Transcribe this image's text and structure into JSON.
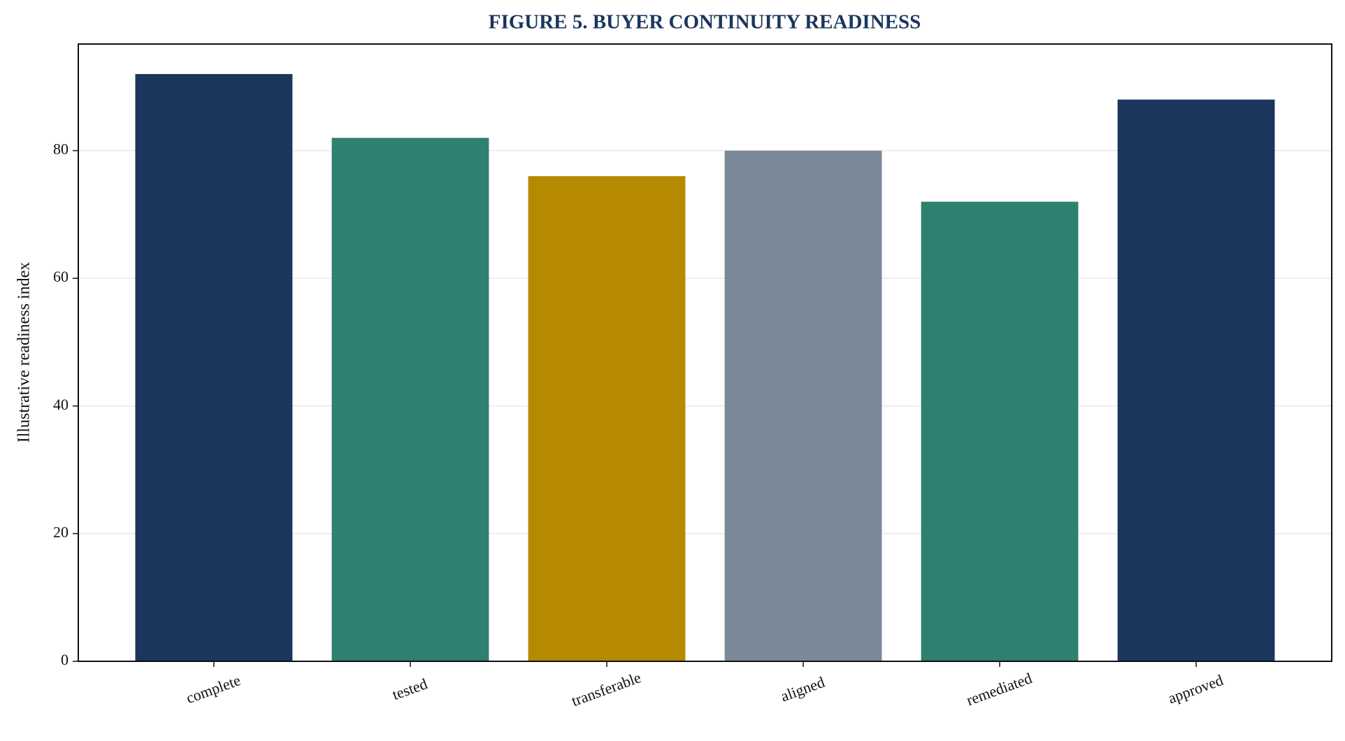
{
  "chart_data": {
    "type": "bar",
    "title": "FIGURE 5. BUYER CONTINUITY READINESS",
    "y_label": "Illustrative readiness index",
    "categories": [
      "complete",
      "tested",
      "transferable",
      "aligned",
      "remediated",
      "approved"
    ],
    "values": [
      92,
      82,
      76,
      80,
      72,
      88
    ],
    "colors": [
      "#1a365d",
      "#2e8070",
      "#b58900",
      "#7a8898",
      "#2e8070",
      "#1a365d"
    ],
    "ylim": [
      0,
      96.7
    ],
    "yticks": [
      0,
      20,
      40,
      60,
      80
    ],
    "grid": true
  }
}
